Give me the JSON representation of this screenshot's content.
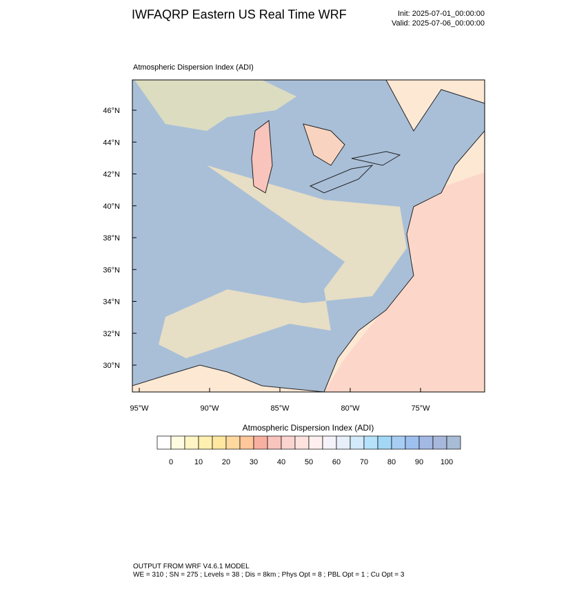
{
  "header": {
    "title": "IWFAQRP Eastern US Real Time WRF",
    "init": "Init: 2025-07-01_00:00:00",
    "valid": "Valid: 2025-07-06_00:00:00"
  },
  "map": {
    "subtitle": "Atmospheric Dispersion Index   (ADI)",
    "lat_labels": [
      "46°N",
      "44°N",
      "42°N",
      "40°N",
      "38°N",
      "36°N",
      "34°N",
      "32°N",
      "30°N"
    ],
    "lon_labels": [
      "95°W",
      "90°W",
      "85°W",
      "80°W",
      "75°W"
    ]
  },
  "colorbar": {
    "title": "Atmospheric Dispersion Index  (ADI)",
    "labels": [
      0,
      10,
      20,
      30,
      40,
      50,
      60,
      70,
      80,
      90,
      100
    ],
    "colors": [
      "#ffffff",
      "#fffbe0",
      "#fff5c4",
      "#fff0b0",
      "#ffe7a0",
      "#ffd8a0",
      "#ffc79a",
      "#f8b0a0",
      "#f8c4bc",
      "#fbd4d0",
      "#fde2de",
      "#fff0ef",
      "#f6f2fa",
      "#e8eefa",
      "#d2eafa",
      "#b6e2fb",
      "#a2d8f6",
      "#a8cdf2",
      "#9ec0ee",
      "#a4b8e4",
      "#a8b8dc",
      "#a8bcd6"
    ]
  },
  "footer": {
    "line1": "OUTPUT FROM WRF V4.6.1 MODEL",
    "line2": "WE = 310 ; SN = 275 ; Levels = 38 ; Dis = 8km ; Phys Opt = 8 ; PBL Opt = 1 ; Cu Opt = 3"
  }
}
